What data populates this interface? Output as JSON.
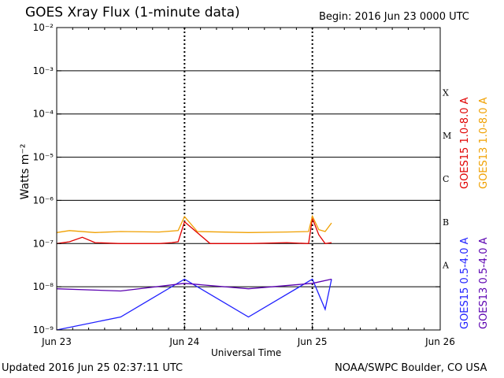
{
  "header": {
    "title": "GOES Xray Flux (1-minute data)",
    "begin_label": "Begin:",
    "begin_value": "2016 Jun 23 0000 UTC"
  },
  "footer": {
    "updated": "Updated 2016 Jun 25 02:37:11 UTC",
    "credit": "NOAA/SWPC Boulder, CO USA"
  },
  "colors": {
    "goes15_long": "#e00000",
    "goes13_long": "#f0a000",
    "goes15_short": "#2020ff",
    "goes13_short": "#5a00b0"
  },
  "chart_data": {
    "type": "line",
    "y_scale": "log",
    "ylim": [
      1e-09,
      0.01
    ],
    "ylabel": "Watts m⁻²",
    "xlabel": "Universal Time",
    "x_ticks": [
      "Jun 23",
      "Jun 24",
      "Jun 25",
      "Jun 26"
    ],
    "y_ticks": [
      "10⁻⁹",
      "10⁻⁸",
      "10⁻⁷",
      "10⁻⁶",
      "10⁻⁵",
      "10⁻⁴",
      "10⁻³",
      "10⁻²"
    ],
    "flare_classes": [
      "A",
      "B",
      "C",
      "M",
      "X"
    ],
    "xlim_days": [
      0,
      3
    ],
    "series": [
      {
        "name": "GOES15 1.0-8.0 A",
        "x": [
          0,
          0.1,
          0.2,
          0.3,
          0.5,
          0.8,
          0.9,
          0.95,
          1.0,
          1.2,
          1.5,
          1.8,
          1.97,
          2.0,
          2.05,
          2.1,
          2.15
        ],
        "y": [
          1e-07,
          1.1e-07,
          1.4e-07,
          1.05e-07,
          1e-07,
          1e-07,
          1.05e-07,
          1.1e-07,
          3.2e-07,
          1e-07,
          1e-07,
          1.05e-07,
          1e-07,
          3.8e-07,
          1.6e-07,
          1e-07,
          1.05e-07
        ]
      },
      {
        "name": "GOES13 1.0-8.0 A",
        "x": [
          0,
          0.1,
          0.3,
          0.5,
          0.8,
          0.95,
          1.0,
          1.1,
          1.5,
          1.8,
          1.97,
          2.0,
          2.05,
          2.1,
          2.15
        ],
        "y": [
          1.8e-07,
          2e-07,
          1.8e-07,
          1.9e-07,
          1.85e-07,
          2e-07,
          4.2e-07,
          1.9e-07,
          1.8e-07,
          1.85e-07,
          1.9e-07,
          4.3e-07,
          2.1e-07,
          1.9e-07,
          3e-07
        ]
      },
      {
        "name": "GOES15 0.5-4.0 A",
        "x": [
          0,
          0.5,
          1.0,
          1.5,
          2.0,
          2.1,
          2.15
        ],
        "y": [
          1e-09,
          2e-09,
          1.5e-08,
          2e-09,
          1.5e-08,
          3e-09,
          1.5e-08
        ]
      },
      {
        "name": "GOES13 0.5-4.0 A",
        "x": [
          0,
          0.5,
          1.0,
          1.5,
          2.0,
          2.15
        ],
        "y": [
          9e-09,
          8e-09,
          1.2e-08,
          9e-09,
          1.2e-08,
          1.5e-08
        ]
      }
    ]
  }
}
